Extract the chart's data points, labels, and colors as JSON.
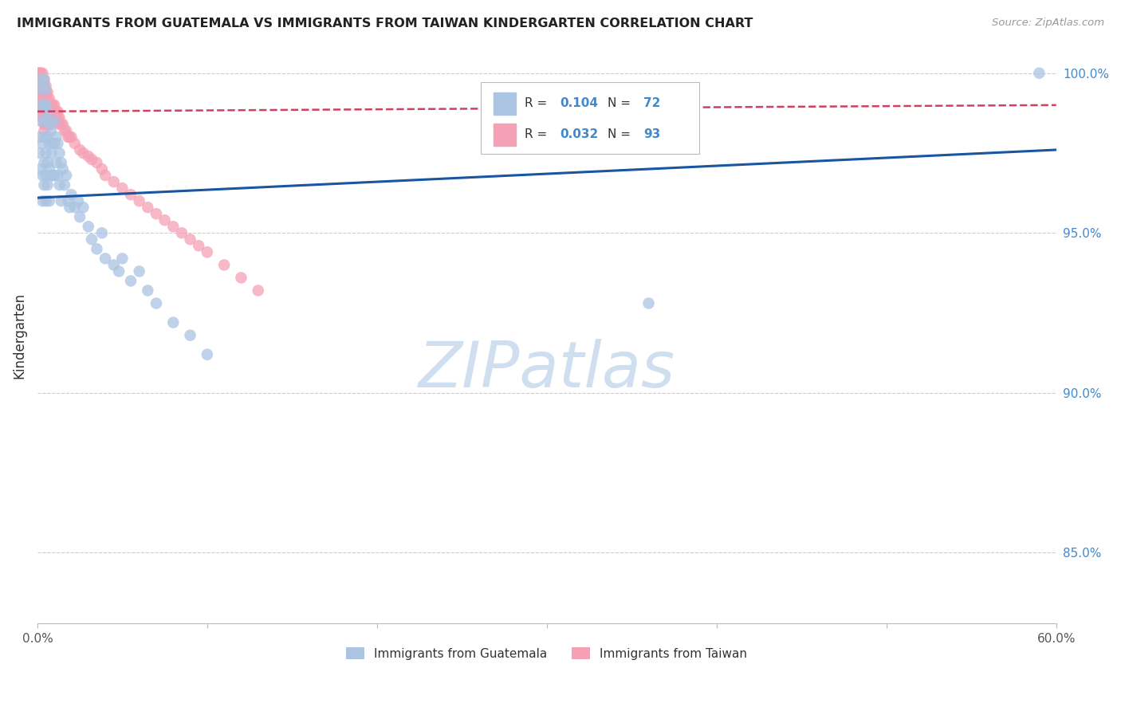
{
  "title": "IMMIGRANTS FROM GUATEMALA VS IMMIGRANTS FROM TAIWAN KINDERGARTEN CORRELATION CHART",
  "source": "Source: ZipAtlas.com",
  "ylabel": "Kindergarten",
  "xlim": [
    0,
    0.6
  ],
  "ylim": [
    0.828,
    1.008
  ],
  "yticks": [
    0.85,
    0.9,
    0.95,
    1.0
  ],
  "ytick_labels": [
    "85.0%",
    "90.0%",
    "95.0%",
    "100.0%"
  ],
  "color_guatemala": "#aac4e2",
  "color_taiwan": "#f5a0b5",
  "color_line_guatemala": "#1a55a0",
  "color_line_taiwan": "#d04060",
  "color_title": "#222222",
  "color_source": "#999999",
  "color_right_axis": "#4488cc",
  "color_watermark": "#d0dff0",
  "watermark_text": "ZIPatlas",
  "guat_line_x0": 0.0,
  "guat_line_y0": 0.961,
  "guat_line_x1": 0.6,
  "guat_line_y1": 0.976,
  "taiwan_line_x0": 0.0,
  "taiwan_line_y0": 0.988,
  "taiwan_line_x1": 0.6,
  "taiwan_line_y1": 0.99,
  "guatemala_x": [
    0.001,
    0.001,
    0.002,
    0.002,
    0.002,
    0.002,
    0.003,
    0.003,
    0.003,
    0.003,
    0.004,
    0.004,
    0.004,
    0.004,
    0.004,
    0.005,
    0.005,
    0.005,
    0.005,
    0.005,
    0.005,
    0.006,
    0.006,
    0.006,
    0.006,
    0.007,
    0.007,
    0.007,
    0.007,
    0.008,
    0.008,
    0.008,
    0.009,
    0.009,
    0.01,
    0.01,
    0.01,
    0.011,
    0.011,
    0.012,
    0.012,
    0.013,
    0.013,
    0.014,
    0.014,
    0.015,
    0.016,
    0.017,
    0.018,
    0.019,
    0.02,
    0.022,
    0.024,
    0.025,
    0.027,
    0.03,
    0.032,
    0.035,
    0.038,
    0.04,
    0.045,
    0.048,
    0.05,
    0.055,
    0.06,
    0.065,
    0.07,
    0.08,
    0.09,
    0.1,
    0.36,
    0.59
  ],
  "guatemala_y": [
    0.98,
    0.975,
    0.995,
    0.985,
    0.97,
    0.998,
    0.99,
    0.978,
    0.968,
    0.96,
    0.998,
    0.99,
    0.98,
    0.972,
    0.965,
    0.995,
    0.99,
    0.985,
    0.975,
    0.968,
    0.96,
    0.988,
    0.98,
    0.972,
    0.965,
    0.985,
    0.978,
    0.97,
    0.96,
    0.982,
    0.975,
    0.968,
    0.978,
    0.968,
    0.985,
    0.978,
    0.968,
    0.98,
    0.972,
    0.978,
    0.968,
    0.975,
    0.965,
    0.972,
    0.96,
    0.97,
    0.965,
    0.968,
    0.96,
    0.958,
    0.962,
    0.958,
    0.96,
    0.955,
    0.958,
    0.952,
    0.948,
    0.945,
    0.95,
    0.942,
    0.94,
    0.938,
    0.942,
    0.935,
    0.938,
    0.932,
    0.928,
    0.922,
    0.918,
    0.912,
    0.928,
    1.0
  ],
  "taiwan_x": [
    0.001,
    0.001,
    0.001,
    0.001,
    0.001,
    0.002,
    0.002,
    0.002,
    0.002,
    0.002,
    0.002,
    0.002,
    0.003,
    0.003,
    0.003,
    0.003,
    0.003,
    0.003,
    0.003,
    0.003,
    0.004,
    0.004,
    0.004,
    0.004,
    0.004,
    0.004,
    0.004,
    0.004,
    0.004,
    0.005,
    0.005,
    0.005,
    0.005,
    0.005,
    0.005,
    0.005,
    0.006,
    0.006,
    0.006,
    0.006,
    0.006,
    0.006,
    0.007,
    0.007,
    0.007,
    0.007,
    0.007,
    0.008,
    0.008,
    0.008,
    0.008,
    0.009,
    0.009,
    0.009,
    0.01,
    0.01,
    0.01,
    0.011,
    0.011,
    0.012,
    0.012,
    0.013,
    0.013,
    0.014,
    0.015,
    0.016,
    0.017,
    0.018,
    0.019,
    0.02,
    0.022,
    0.025,
    0.027,
    0.03,
    0.032,
    0.035,
    0.038,
    0.04,
    0.045,
    0.05,
    0.055,
    0.06,
    0.065,
    0.07,
    0.075,
    0.08,
    0.085,
    0.09,
    0.095,
    0.1,
    0.11,
    0.12,
    0.13
  ],
  "taiwan_y": [
    1.0,
    1.0,
    0.998,
    0.996,
    0.994,
    1.0,
    0.998,
    0.996,
    0.994,
    0.992,
    0.99,
    0.988,
    1.0,
    0.998,
    0.996,
    0.994,
    0.992,
    0.99,
    0.988,
    0.986,
    0.998,
    0.996,
    0.994,
    0.992,
    0.99,
    0.988,
    0.986,
    0.984,
    0.982,
    0.996,
    0.994,
    0.992,
    0.99,
    0.988,
    0.986,
    0.984,
    0.994,
    0.992,
    0.99,
    0.988,
    0.986,
    0.984,
    0.992,
    0.99,
    0.988,
    0.986,
    0.984,
    0.99,
    0.988,
    0.986,
    0.984,
    0.99,
    0.988,
    0.986,
    0.99,
    0.988,
    0.986,
    0.988,
    0.986,
    0.988,
    0.986,
    0.986,
    0.984,
    0.984,
    0.984,
    0.982,
    0.982,
    0.98,
    0.98,
    0.98,
    0.978,
    0.976,
    0.975,
    0.974,
    0.973,
    0.972,
    0.97,
    0.968,
    0.966,
    0.964,
    0.962,
    0.96,
    0.958,
    0.956,
    0.954,
    0.952,
    0.95,
    0.948,
    0.946,
    0.944,
    0.94,
    0.936,
    0.932
  ]
}
